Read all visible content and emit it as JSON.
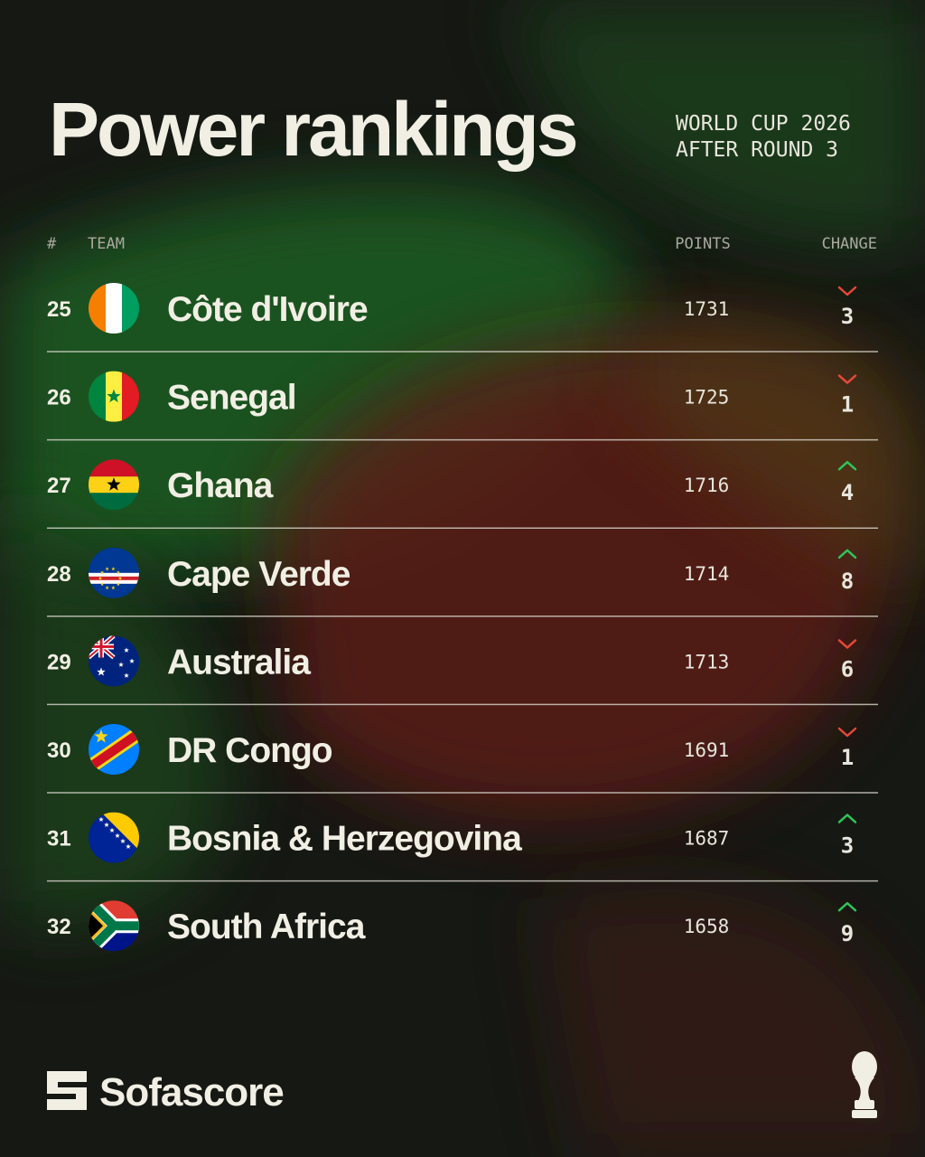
{
  "header": {
    "title": "Power rankings",
    "subtitle": [
      "WORLD CUP 2026",
      "AFTER ROUND 3"
    ]
  },
  "table": {
    "columns": [
      "#",
      "TEAM",
      "POINTS",
      "CHANGE"
    ],
    "rows": [
      {
        "rank": 25,
        "team": "Côte d'Ivoire",
        "points": 1731,
        "change": 3,
        "trend": "down"
      },
      {
        "rank": 26,
        "team": "Senegal",
        "points": 1725,
        "change": 1,
        "trend": "down"
      },
      {
        "rank": 27,
        "team": "Ghana",
        "points": 1716,
        "change": 4,
        "trend": "up"
      },
      {
        "rank": 28,
        "team": "Cape Verde",
        "points": 1714,
        "change": 8,
        "trend": "up"
      },
      {
        "rank": 29,
        "team": "Australia",
        "points": 1713,
        "change": 6,
        "trend": "down"
      },
      {
        "rank": 30,
        "team": "DR Congo",
        "points": 1691,
        "change": 1,
        "trend": "down"
      },
      {
        "rank": 31,
        "team": "Bosnia & Herzegovina",
        "points": 1687,
        "change": 3,
        "trend": "up"
      },
      {
        "rank": 32,
        "team": "South Africa",
        "points": 1658,
        "change": 9,
        "trend": "up"
      }
    ]
  },
  "footer": {
    "brand": "Sofascore"
  }
}
